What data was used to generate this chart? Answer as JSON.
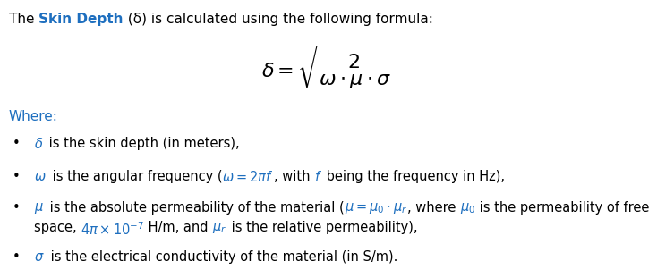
{
  "bg_color": "#ffffff",
  "text_color": "#000000",
  "blue_color": "#1E6FBF",
  "bold_color": "#1E6FBF",
  "figsize": [
    7.34,
    3.11
  ],
  "dpi": 100,
  "title_parts": [
    {
      "text": "The ",
      "bold": false,
      "color": "#000000"
    },
    {
      "text": "Skin Depth",
      "bold": true,
      "color": "#1E6FBF"
    },
    {
      "text": " (δ) is calculated using the following formula:",
      "bold": false,
      "color": "#000000"
    }
  ],
  "where_text": "Where:",
  "where_color": "#1E6FBF",
  "bullet_color": "#000000",
  "formula_fontsize": 16,
  "title_fontsize": 11,
  "body_fontsize": 10.5
}
